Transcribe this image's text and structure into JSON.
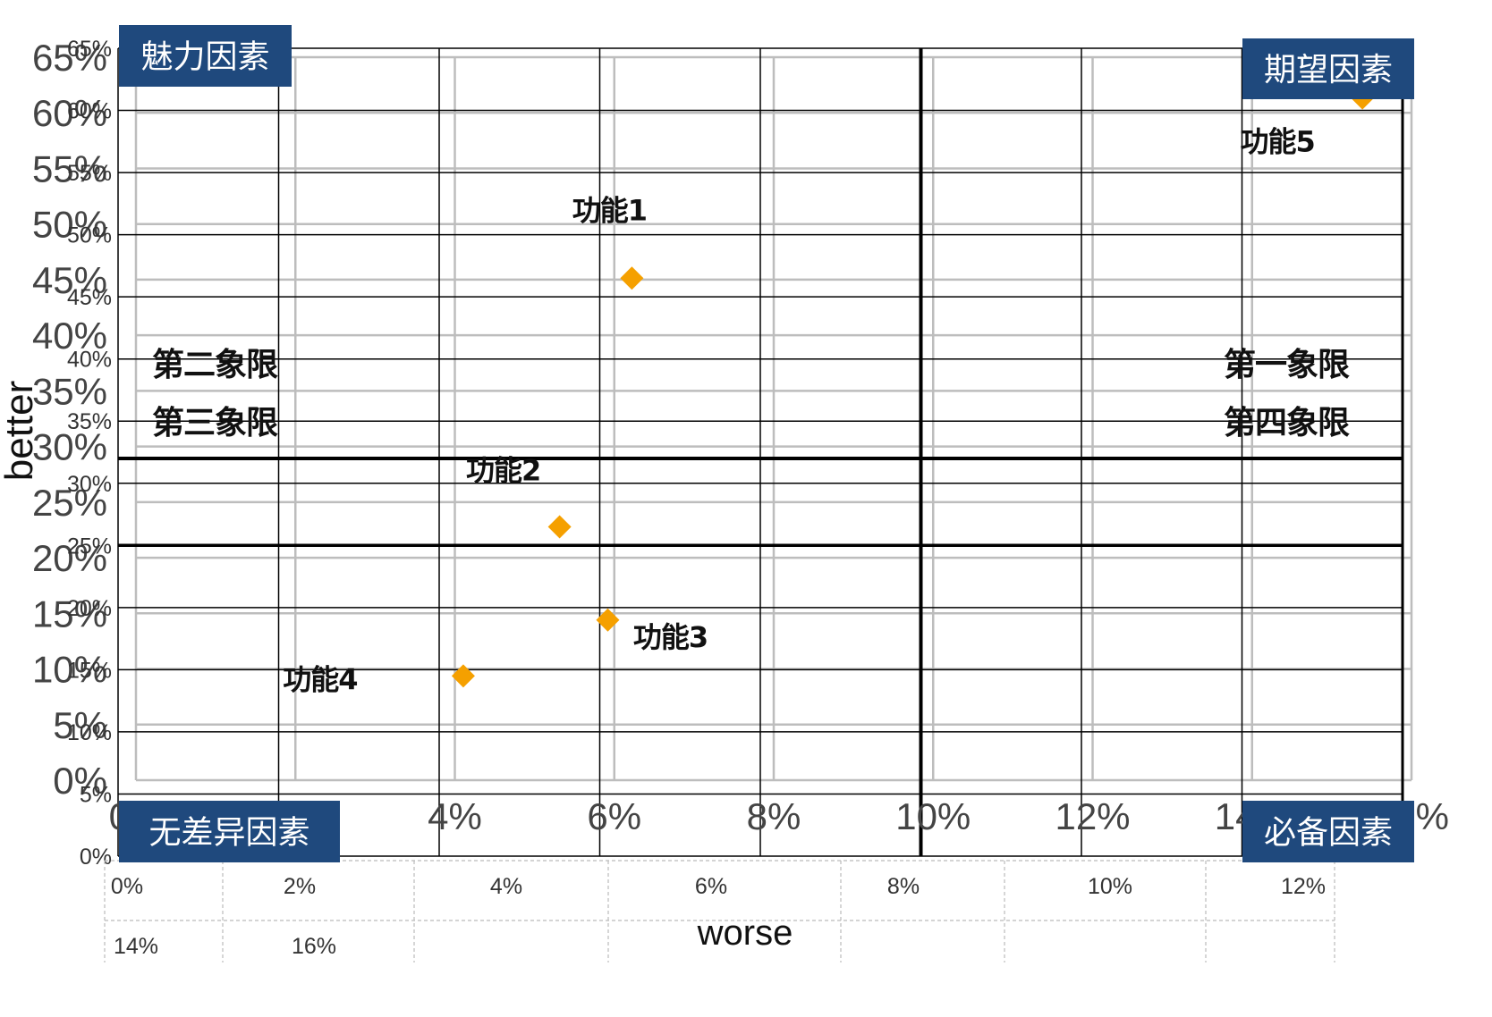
{
  "chart_data": {
    "type": "scatter",
    "xlabel": "worse",
    "ylabel": "better",
    "x_ticks_small": [
      "0%",
      "2%",
      "4%",
      "6%",
      "8%",
      "10%",
      "12%",
      "14%",
      "16%"
    ],
    "y_ticks_small": [
      "0%",
      "5%",
      "10%",
      "15%",
      "20%",
      "25%",
      "30%",
      "35%",
      "40%",
      "45%",
      "50%",
      "55%",
      "60%",
      "65%"
    ],
    "x_ticks_large": [
      "0%",
      "2%",
      "4%",
      "6%",
      "8%",
      "10%",
      "12%",
      "14%",
      "16%"
    ],
    "y_ticks_large": [
      "0%",
      "5%",
      "10%",
      "15%",
      "20%",
      "25%",
      "30%",
      "35%",
      "40%",
      "45%",
      "50%",
      "55%",
      "60%",
      "65%"
    ],
    "xlim": [
      0,
      16
    ],
    "ylim": [
      0,
      65
    ],
    "grid": true,
    "points": [
      {
        "label": "功能1",
        "x": 6.4,
        "y": 46.5
      },
      {
        "label": "功能2",
        "x": 5.5,
        "y": 26.5
      },
      {
        "label": "功能3",
        "x": 6.1,
        "y": 19
      },
      {
        "label": "功能4",
        "x": 4.3,
        "y": 14.5
      },
      {
        "label": "功能5",
        "x": 15.5,
        "y": 61
      }
    ],
    "point_color": "#f5a000",
    "quadrant_dividers": {
      "x": 10,
      "y": 32
    },
    "quadrant_labels": [
      "第二象限",
      "第三象限",
      "第一象限",
      "第四象限"
    ],
    "factor_labels": [
      "魅力因素",
      "期望因素",
      "无差异因素",
      "必备因素"
    ],
    "factor_color": "#1f497d"
  }
}
